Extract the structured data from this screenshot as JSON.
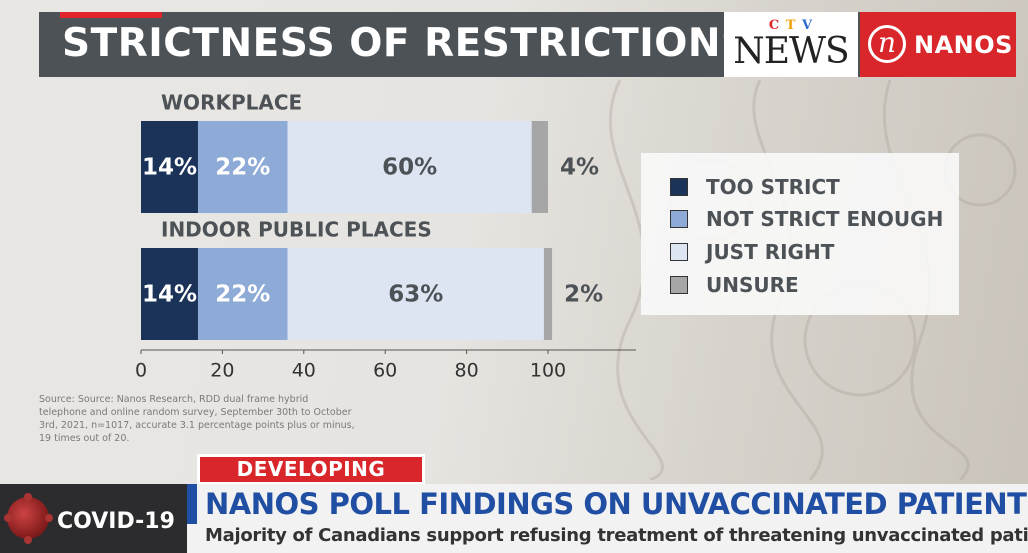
{
  "header": {
    "title": "STRICTNESS OF RESTRICTIONS",
    "ctv_small": [
      "C",
      "T",
      "V"
    ],
    "ctv_news": "NEWS",
    "nanos_letter": "n",
    "nanos_word": "NANOS"
  },
  "colors": {
    "too_strict": "#1b3358",
    "not_strict_enough": "#8eaad6",
    "just_right": "#dde5f3",
    "unsure": "#a6a6a6",
    "header_bg": "#4d5257",
    "brand_red": "#d8262a",
    "headline_blue": "#1f4ea3"
  },
  "chart_data": {
    "type": "bar",
    "orientation": "horizontal",
    "stacked": true,
    "categories": [
      "WORKPLACE",
      "INDOOR PUBLIC PLACES"
    ],
    "series": [
      {
        "name": "TOO STRICT",
        "values": [
          14,
          14
        ],
        "labels": [
          "14%",
          "14%"
        ]
      },
      {
        "name": "NOT STRICT ENOUGH",
        "values": [
          22,
          22
        ],
        "labels": [
          "22%",
          "22%"
        ]
      },
      {
        "name": "JUST RIGHT",
        "values": [
          60,
          63
        ],
        "labels": [
          "60%",
          "63%"
        ]
      },
      {
        "name": "UNSURE",
        "values": [
          4,
          2
        ],
        "labels": [
          "4%",
          "2%"
        ]
      }
    ],
    "xlim": [
      0,
      100
    ],
    "xticks": [
      0,
      20,
      40,
      60,
      80,
      100
    ],
    "legend_position": "right"
  },
  "source": "Source: Source: Nanos Research, RDD dual frame hybrid telephone and online random survey, September 30th to October 3rd, 2021, n=1017, accurate 3.1 percentage points plus or minus, 19 times out of 20.",
  "lower_third": {
    "banner": "DEVELOPING NEWS",
    "section": "COVID-19",
    "headline": "NANOS POLL FINDINGS ON UNVACCINATED PATIENTS",
    "subline": "Majority of Canadians support refusing treatment of threatening unvaccinated patients"
  }
}
